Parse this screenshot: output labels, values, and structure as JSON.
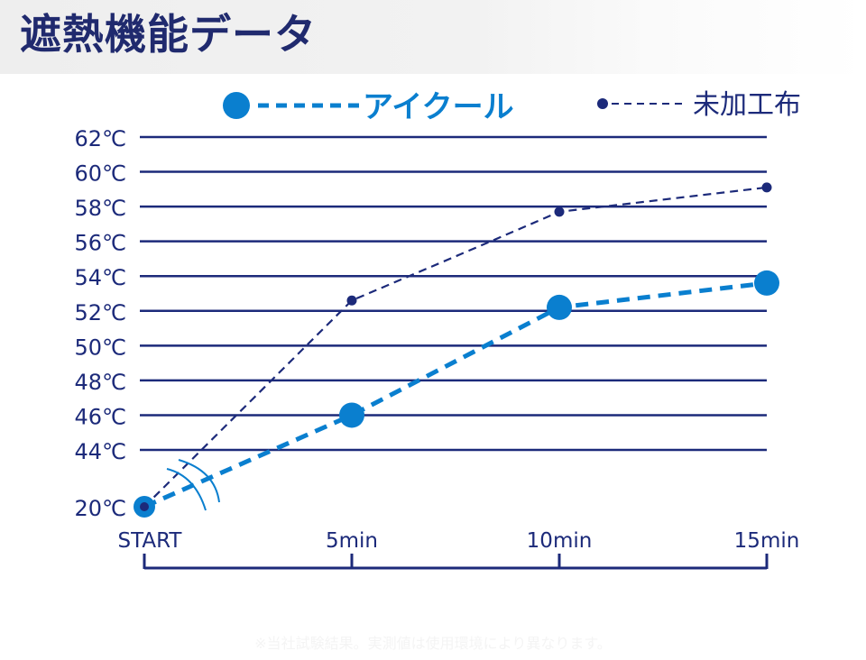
{
  "page": {
    "title": "遮熱機能データ",
    "footnote": "※当社試験結果。実測値は使用環境により異なります。"
  },
  "colors": {
    "title": "#202a6e",
    "navy": "#1c2a7a",
    "blue": "#0a7fcf"
  },
  "chart_data": {
    "type": "line",
    "categories": [
      "START",
      "5min",
      "10min",
      "15min"
    ],
    "yticks": [
      "62℃",
      "60℃",
      "58℃",
      "56℃",
      "54℃",
      "52℃",
      "50℃",
      "48℃",
      "46℃",
      "44℃",
      "20℃"
    ],
    "ylim": [
      20,
      62
    ],
    "axis_break": "between 20℃ and 44℃",
    "grid": true,
    "legend_position": "top",
    "series": [
      {
        "name": "アイクール",
        "values": [
          20,
          46,
          52.2,
          53.6
        ]
      },
      {
        "name": "未加工布",
        "values": [
          20,
          52.6,
          57.7,
          59.1
        ]
      }
    ]
  }
}
